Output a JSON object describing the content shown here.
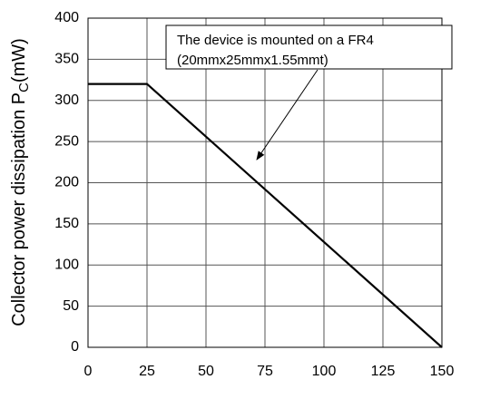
{
  "chart_data": {
    "type": "line",
    "ylabel": {
      "text": "Collector power dissipation P",
      "subscript": "C",
      "unit": "(mW)"
    },
    "x": [
      0,
      25,
      150
    ],
    "series": [
      {
        "color": "#000000",
        "values": [
          320,
          320,
          0
        ]
      }
    ],
    "xlim": [
      0,
      150
    ],
    "xticks": [
      0,
      25,
      50,
      75,
      100,
      125,
      150
    ],
    "ylim": [
      0,
      400
    ],
    "yticks": [
      0,
      50,
      100,
      150,
      200,
      250,
      300,
      350,
      400
    ],
    "grid": true,
    "annotation": [
      "The device is mounted on a FR4",
      "(20mmx25mmx1.55mmt)"
    ]
  }
}
